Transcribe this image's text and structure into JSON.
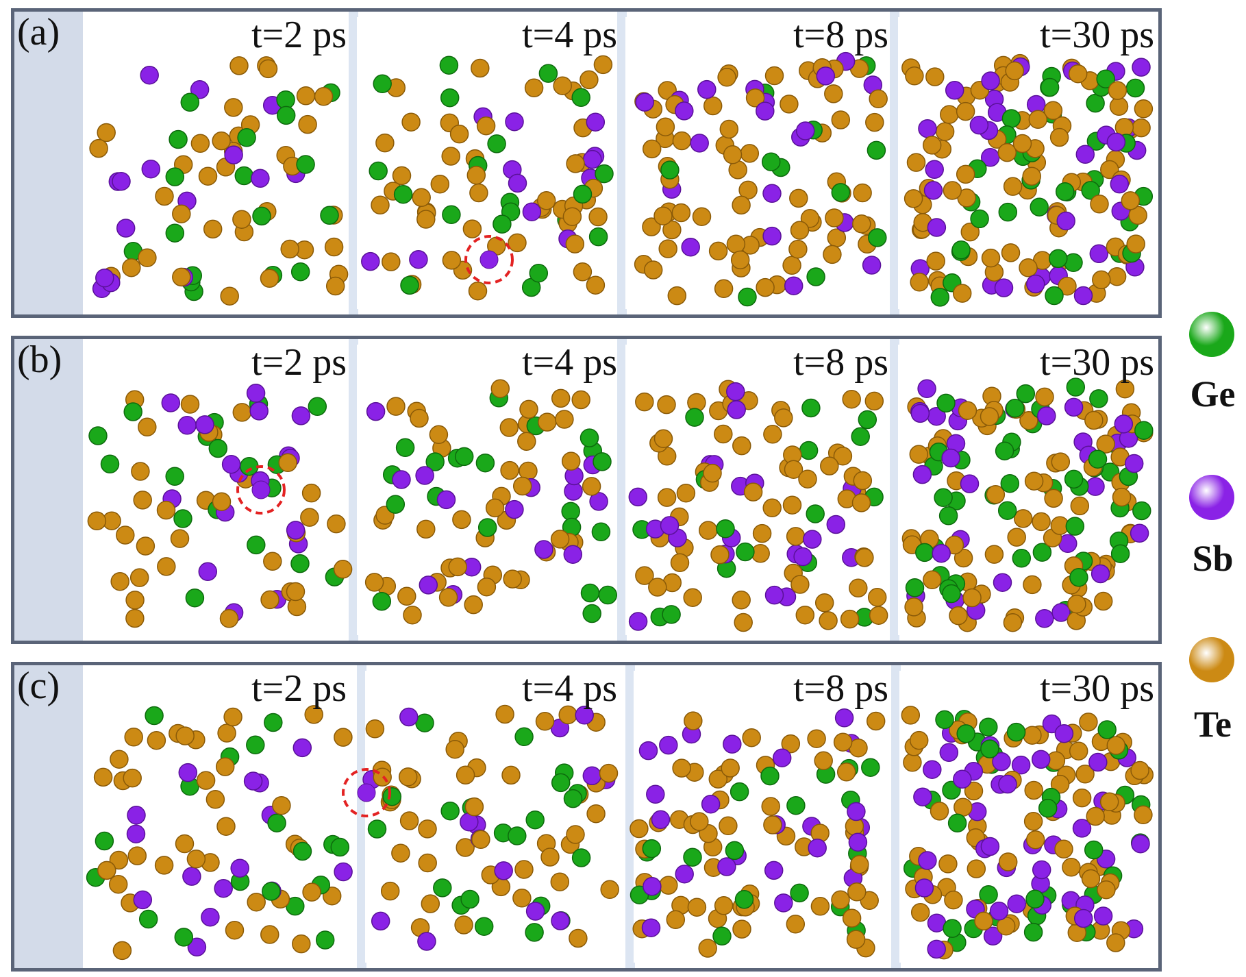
{
  "rows": [
    {
      "label": "(a)",
      "times": [
        "t=2 ps",
        "t=4 ps",
        "t=8 ps",
        "t=30 ps"
      ]
    },
    {
      "label": "(b)",
      "times": [
        "t=2 ps",
        "t=4 ps",
        "t=8 ps",
        "t=30 ps"
      ]
    },
    {
      "label": "(c)",
      "times": [
        "t=2 ps",
        "t=4 ps",
        "t=8 ps",
        "t=30 ps"
      ]
    }
  ],
  "legend": [
    {
      "label": "Ge",
      "color": "#1aa81a"
    },
    {
      "label": "Sb",
      "color": "#8a22e6"
    },
    {
      "label": "Te",
      "color": "#cc8a14"
    }
  ],
  "highlight_color": "#e32222"
}
